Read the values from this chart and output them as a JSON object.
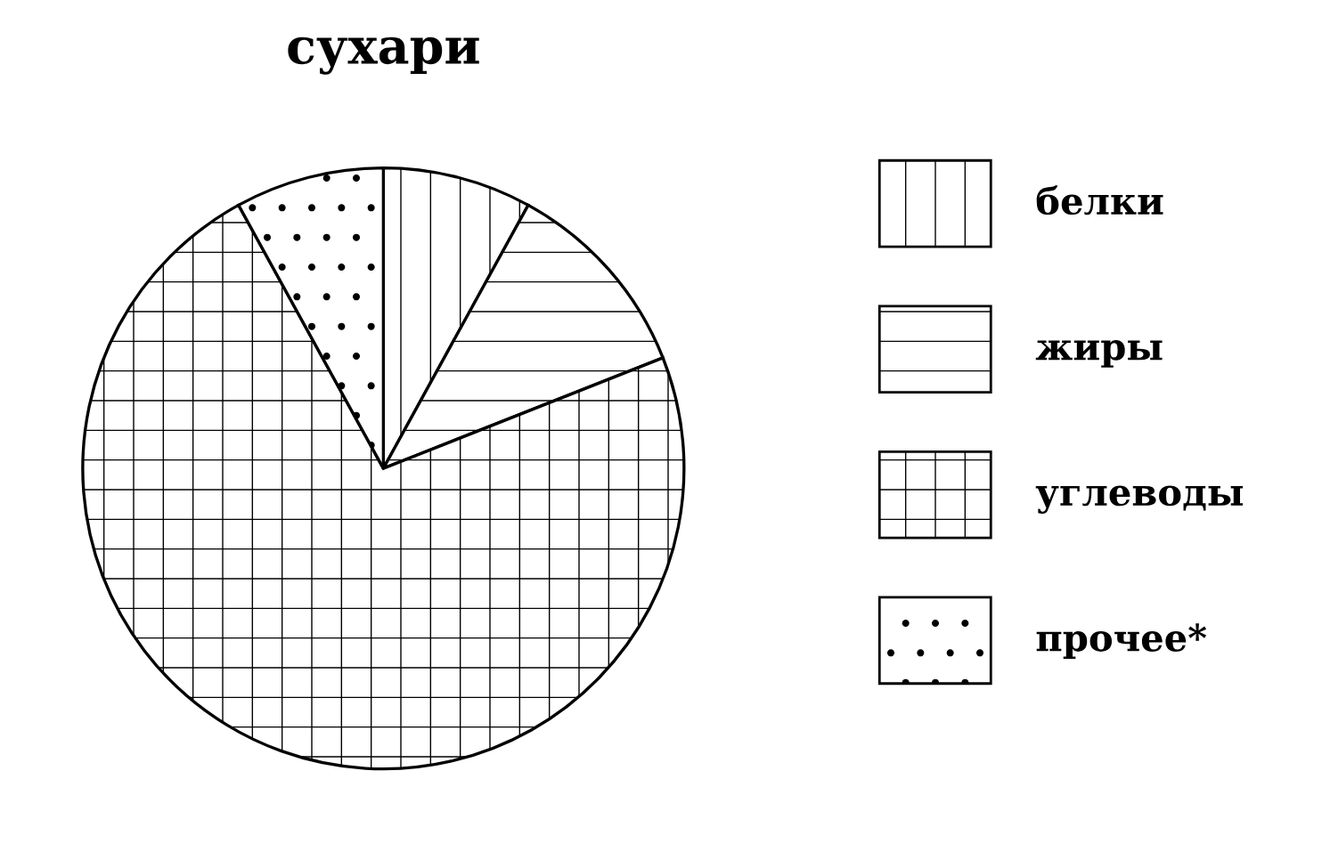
{
  "chart_data": {
    "type": "pie",
    "title": "сухари",
    "categories": [
      "белки",
      "жиры",
      "углеводы",
      "прочее*"
    ],
    "values": [
      8,
      11,
      73,
      8
    ],
    "colors": [
      "#000000",
      "#000000",
      "#000000",
      "#000000"
    ],
    "legend": "right"
  }
}
